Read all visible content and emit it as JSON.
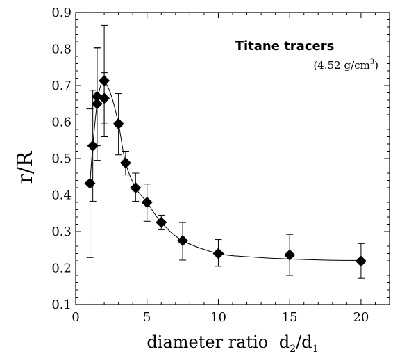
{
  "chart_data": {
    "type": "scatter",
    "xlabel_main": "diameter ratio",
    "xlabel_d2": "d",
    "xlabel_d2_sub": "2",
    "xlabel_slash": "/",
    "xlabel_d1": "d",
    "xlabel_d1_sub": "1",
    "ylabel": "r/R",
    "xlim": [
      0,
      22
    ],
    "ylim": [
      0.1,
      0.9
    ],
    "xticks": [
      0,
      5,
      10,
      15,
      20
    ],
    "yticks": [
      0.1,
      0.2,
      0.3,
      0.4,
      0.5,
      0.6,
      0.7,
      0.8,
      0.9
    ],
    "xtick_labels": [
      "0",
      "5",
      "10",
      "15",
      "20"
    ],
    "ytick_labels": [
      "0.1",
      "0.2",
      "0.3",
      "0.4",
      "0.5",
      "0.6",
      "0.7",
      "0.8",
      "0.9"
    ],
    "grid": false,
    "annotation_title": "Titane tracers",
    "annotation_density": "(4.52 g/cm",
    "annotation_density_sup": "3",
    "annotation_density_close": ")",
    "points": [
      {
        "x": 1.0,
        "y": 0.432,
        "err_low": 0.229,
        "err_high": 0.636
      },
      {
        "x": 1.2,
        "y": 0.535,
        "err_low": 0.383,
        "err_high": 0.687
      },
      {
        "x": 1.5,
        "y": 0.65,
        "err_low": 0.495,
        "err_high": 0.803
      },
      {
        "x": 1.5,
        "y": 0.67,
        "err_low": 0.535,
        "err_high": 0.805
      },
      {
        "x": 2.0,
        "y": 0.665,
        "err_low": 0.595,
        "err_high": 0.735
      },
      {
        "x": 2.0,
        "y": 0.713,
        "err_low": 0.56,
        "err_high": 0.865
      },
      {
        "x": 3.0,
        "y": 0.595,
        "err_low": 0.51,
        "err_high": 0.678
      },
      {
        "x": 3.5,
        "y": 0.488,
        "err_low": 0.455,
        "err_high": 0.52
      },
      {
        "x": 4.2,
        "y": 0.42,
        "err_low": 0.383,
        "err_high": 0.46
      },
      {
        "x": 5.0,
        "y": 0.38,
        "err_low": 0.328,
        "err_high": 0.43
      },
      {
        "x": 6.0,
        "y": 0.325,
        "err_low": 0.305,
        "err_high": 0.345
      },
      {
        "x": 7.5,
        "y": 0.275,
        "err_low": 0.222,
        "err_high": 0.325
      },
      {
        "x": 10.0,
        "y": 0.24,
        "err_low": 0.205,
        "err_high": 0.278
      },
      {
        "x": 15.0,
        "y": 0.236,
        "err_low": 0.18,
        "err_high": 0.292
      },
      {
        "x": 20.0,
        "y": 0.219,
        "err_low": 0.172,
        "err_high": 0.267
      }
    ],
    "fit_curve": [
      [
        1.0,
        0.432
      ],
      [
        1.2,
        0.535
      ],
      [
        1.5,
        0.65
      ],
      [
        1.75,
        0.7
      ],
      [
        2.0,
        0.713
      ],
      [
        2.5,
        0.672
      ],
      [
        3.0,
        0.595
      ],
      [
        3.5,
        0.488
      ],
      [
        4.2,
        0.42
      ],
      [
        5.0,
        0.38
      ],
      [
        6.0,
        0.325
      ],
      [
        7.5,
        0.275
      ],
      [
        10.0,
        0.24
      ],
      [
        12.5,
        0.23
      ],
      [
        15.0,
        0.225
      ],
      [
        17.5,
        0.222
      ],
      [
        20.0,
        0.221
      ]
    ]
  }
}
